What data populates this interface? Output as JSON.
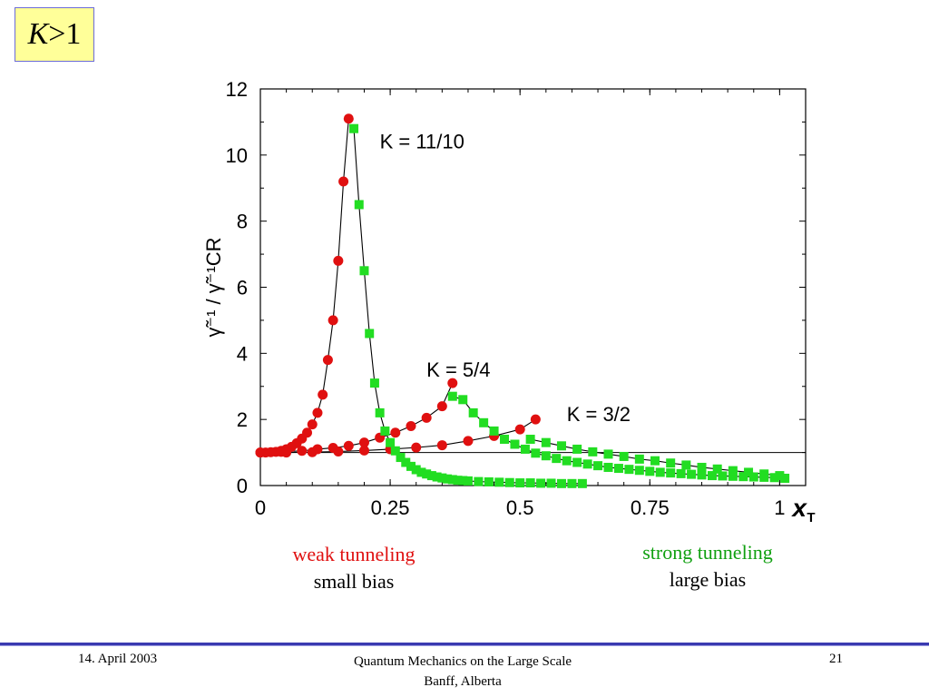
{
  "slide": {
    "title_var": "K",
    "title_rest": " >1",
    "captions": {
      "weak": "weak tunneling",
      "small": "small bias",
      "strong": "strong tunneling",
      "large": "large bias"
    },
    "footer": {
      "date": "14. April 2003",
      "line1": "Quantum Mechanics on the Large Scale",
      "line2": "Banff, Alberta",
      "page": "21"
    },
    "colors": {
      "red": "#e01010",
      "green": "#22dd22",
      "accent": "#3a3ab0",
      "title_bg": "#ffff99"
    }
  },
  "chart_data": {
    "type": "scatter",
    "xlim": [
      0,
      1.05
    ],
    "ylim": [
      0,
      12
    ],
    "xticks": [
      "0",
      "0.25",
      "0.5",
      "0.75",
      "1"
    ],
    "yticks": [
      "0",
      "2",
      "4",
      "6",
      "8",
      "10",
      "12"
    ],
    "xlabel": "x",
    "xlabel_sub": "T",
    "ylabel": "γ̃⁻¹ / γ̃⁻¹CR",
    "annotations": [
      "K = 11/10",
      "K = 5/4",
      "K = 3/2"
    ],
    "reference_line_y": 1,
    "series": [
      {
        "color": "red",
        "marker": "circle",
        "x": [
          0.0,
          0.01,
          0.02,
          0.03,
          0.04,
          0.05,
          0.06,
          0.07,
          0.08,
          0.09,
          0.1,
          0.11,
          0.12,
          0.13,
          0.14,
          0.15,
          0.16,
          0.17
        ],
        "y": [
          1.0,
          1.0,
          1.01,
          1.02,
          1.05,
          1.1,
          1.17,
          1.28,
          1.42,
          1.6,
          1.85,
          2.2,
          2.75,
          3.8,
          5.0,
          6.8,
          9.2,
          11.1
        ]
      },
      {
        "color": "red",
        "marker": "circle",
        "x": [
          0.0,
          0.04,
          0.08,
          0.11,
          0.14,
          0.17,
          0.2,
          0.23,
          0.26,
          0.29,
          0.32,
          0.35,
          0.37
        ],
        "y": [
          1.0,
          1.02,
          1.05,
          1.1,
          1.14,
          1.2,
          1.3,
          1.45,
          1.6,
          1.8,
          2.05,
          2.4,
          3.1
        ]
      },
      {
        "color": "red",
        "marker": "circle",
        "x": [
          0.0,
          0.05,
          0.1,
          0.15,
          0.2,
          0.25,
          0.3,
          0.35,
          0.4,
          0.45,
          0.5,
          0.53
        ],
        "y": [
          1.0,
          1.0,
          1.01,
          1.03,
          1.06,
          1.1,
          1.15,
          1.22,
          1.35,
          1.5,
          1.7,
          2.0
        ]
      },
      {
        "color": "green",
        "marker": "square",
        "x": [
          0.18,
          0.19,
          0.2,
          0.21,
          0.22,
          0.23,
          0.24,
          0.25,
          0.26,
          0.27,
          0.28,
          0.29,
          0.3,
          0.31,
          0.32,
          0.33,
          0.34,
          0.35,
          0.36,
          0.37,
          0.38,
          0.39,
          0.4,
          0.42,
          0.44,
          0.46,
          0.48,
          0.5,
          0.52,
          0.54,
          0.56,
          0.58,
          0.6,
          0.62
        ],
        "y": [
          10.8,
          8.5,
          6.5,
          4.6,
          3.1,
          2.2,
          1.65,
          1.3,
          1.05,
          0.85,
          0.7,
          0.58,
          0.48,
          0.4,
          0.35,
          0.3,
          0.26,
          0.23,
          0.2,
          0.18,
          0.16,
          0.15,
          0.14,
          0.12,
          0.11,
          0.1,
          0.09,
          0.08,
          0.08,
          0.07,
          0.07,
          0.06,
          0.06,
          0.06
        ]
      },
      {
        "color": "green",
        "marker": "square",
        "x": [
          0.37,
          0.39,
          0.41,
          0.43,
          0.45,
          0.47,
          0.49,
          0.51,
          0.53,
          0.55,
          0.57,
          0.59,
          0.61,
          0.63,
          0.65,
          0.67,
          0.69,
          0.71,
          0.73,
          0.75,
          0.77,
          0.79,
          0.81,
          0.83,
          0.85,
          0.87,
          0.89,
          0.91,
          0.93,
          0.95,
          0.97,
          0.99,
          1.01
        ],
        "y": [
          2.7,
          2.6,
          2.2,
          1.9,
          1.65,
          1.4,
          1.25,
          1.1,
          0.98,
          0.9,
          0.82,
          0.75,
          0.7,
          0.65,
          0.6,
          0.55,
          0.52,
          0.49,
          0.46,
          0.43,
          0.4,
          0.38,
          0.36,
          0.34,
          0.32,
          0.3,
          0.29,
          0.28,
          0.27,
          0.26,
          0.25,
          0.24,
          0.22
        ]
      },
      {
        "color": "green",
        "marker": "square",
        "x": [
          0.52,
          0.55,
          0.58,
          0.61,
          0.64,
          0.67,
          0.7,
          0.73,
          0.76,
          0.79,
          0.82,
          0.85,
          0.88,
          0.91,
          0.94,
          0.97,
          1.0
        ],
        "y": [
          1.4,
          1.3,
          1.2,
          1.1,
          1.02,
          0.95,
          0.88,
          0.8,
          0.75,
          0.68,
          0.62,
          0.55,
          0.5,
          0.45,
          0.4,
          0.35,
          0.3
        ]
      }
    ]
  }
}
